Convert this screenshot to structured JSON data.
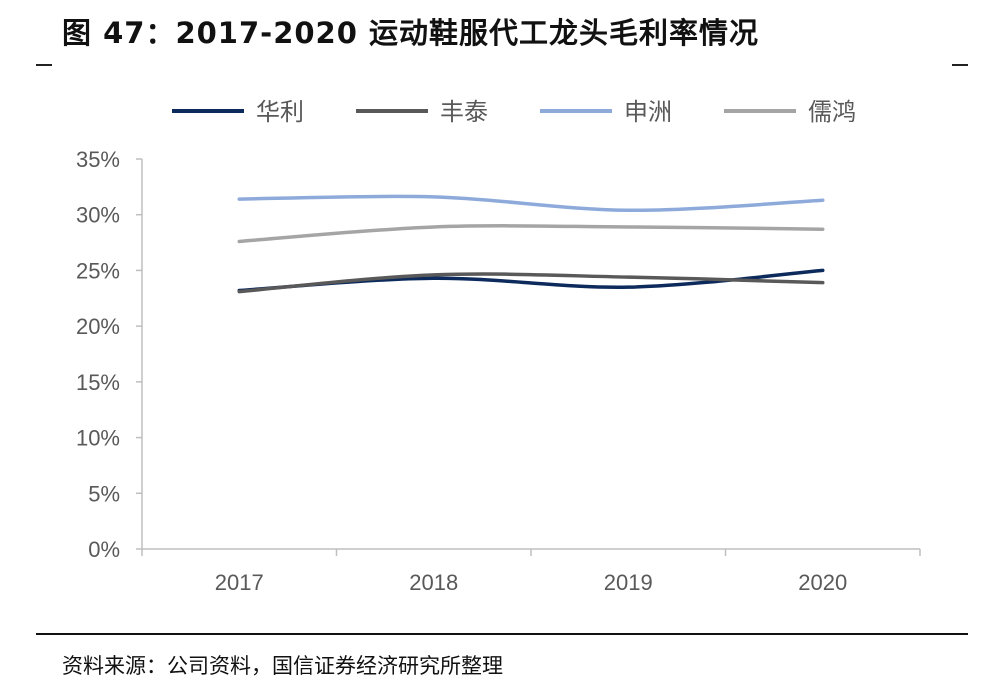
{
  "title": "图 47：2017-2020 运动鞋服代工龙头毛利率情况",
  "source": "资料来源：公司资料，国信证券经济研究所整理",
  "chart_data": {
    "type": "line",
    "categories": [
      "2017",
      "2018",
      "2019",
      "2020"
    ],
    "ylim": [
      0,
      35
    ],
    "yticks": [
      "0%",
      "5%",
      "10%",
      "15%",
      "20%",
      "25%",
      "30%",
      "35%"
    ],
    "ytick_values": [
      0,
      5,
      10,
      15,
      20,
      25,
      30,
      35
    ],
    "unit": "%",
    "grid": false,
    "legend": "top",
    "series": [
      {
        "name": "华利",
        "color": "#0d2a5c",
        "values": [
          23.2,
          24.3,
          23.5,
          25.0
        ]
      },
      {
        "name": "丰泰",
        "color": "#595959",
        "values": [
          23.1,
          24.6,
          24.4,
          23.9
        ]
      },
      {
        "name": "申洲",
        "color": "#8eaadb",
        "values": [
          31.4,
          31.6,
          30.4,
          31.3
        ]
      },
      {
        "name": "儒鸿",
        "color": "#a5a5a5",
        "values": [
          27.6,
          28.9,
          28.9,
          28.7
        ]
      }
    ]
  }
}
